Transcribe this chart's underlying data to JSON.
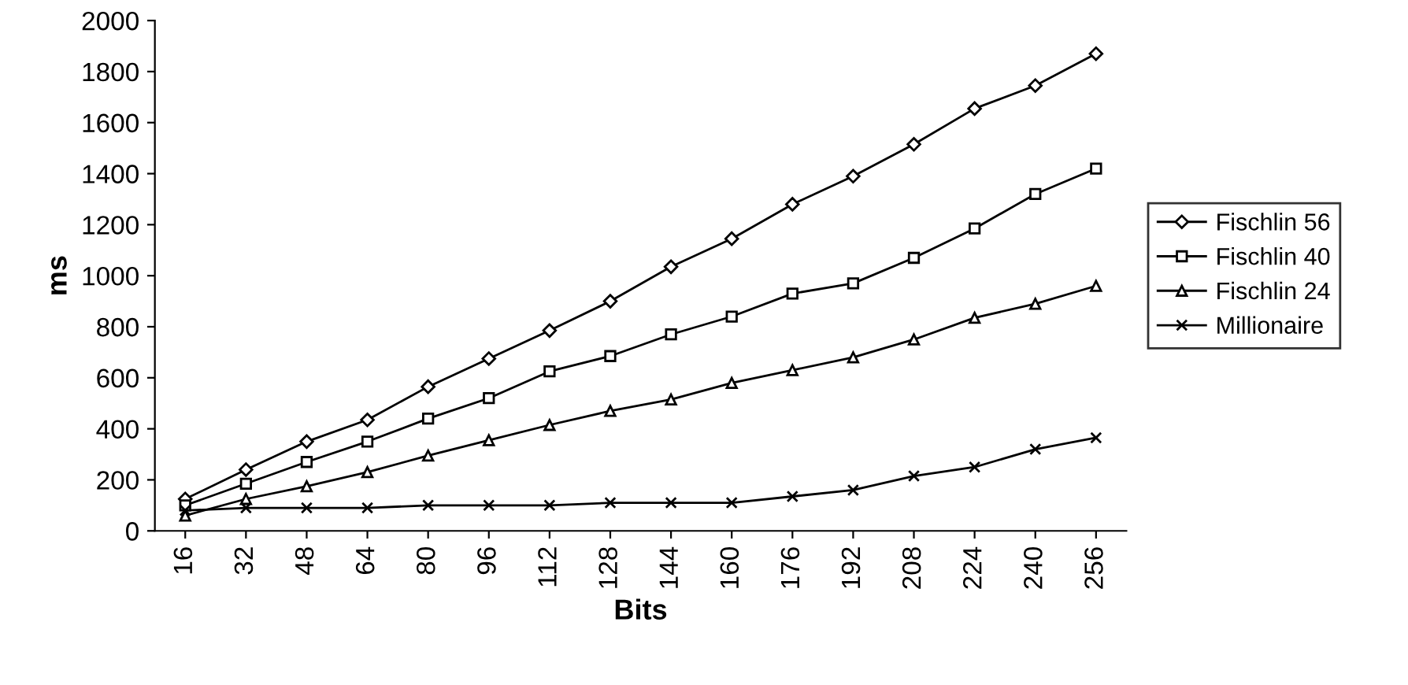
{
  "chart_data": {
    "type": "line",
    "xlabel": "Bits",
    "ylabel": "ms",
    "categories": [
      "16",
      "32",
      "48",
      "64",
      "80",
      "96",
      "112",
      "128",
      "144",
      "160",
      "176",
      "192",
      "208",
      "224",
      "240",
      "256"
    ],
    "series": [
      {
        "name": "Fischlin 56",
        "color": "#000000",
        "marker": "diamond",
        "values": [
          125,
          240,
          350,
          435,
          565,
          675,
          785,
          900,
          1035,
          1145,
          1280,
          1390,
          1515,
          1655,
          1745,
          1870
        ]
      },
      {
        "name": "Fischlin 40",
        "color": "#000000",
        "marker": "square",
        "values": [
          100,
          185,
          270,
          350,
          440,
          520,
          625,
          685,
          770,
          840,
          930,
          970,
          1070,
          1185,
          1320,
          1420
        ]
      },
      {
        "name": "Fischlin 24",
        "color": "#000000",
        "marker": "triangle",
        "values": [
          60,
          125,
          175,
          230,
          295,
          355,
          415,
          470,
          515,
          580,
          630,
          680,
          750,
          835,
          890,
          960
        ]
      },
      {
        "name": "Millionaire",
        "color": "#000000",
        "marker": "cross",
        "values": [
          80,
          90,
          90,
          90,
          100,
          100,
          100,
          110,
          110,
          110,
          135,
          160,
          215,
          250,
          320,
          365
        ]
      }
    ],
    "ylim": [
      0,
      2000
    ],
    "yticks": [
      0,
      200,
      400,
      600,
      800,
      1000,
      1200,
      1400,
      1600,
      1800,
      2000
    ],
    "grid": false,
    "legend": "right",
    "line_style": "solid"
  }
}
